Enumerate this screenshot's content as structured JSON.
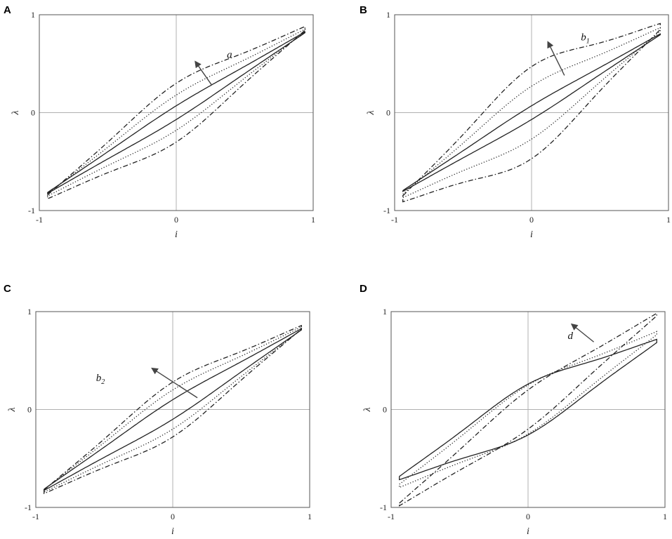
{
  "chart_data": [
    {
      "type": "line",
      "panel": "A",
      "xlabel": "i",
      "ylabel": "λ",
      "xlim": [
        -1,
        1
      ],
      "ylim": [
        -1,
        1
      ],
      "xticks": [
        "-1",
        "0",
        "1"
      ],
      "yticks": [
        "-1",
        "0",
        "1"
      ],
      "grid": "zero lines",
      "annotation": {
        "base": "a",
        "sub": "",
        "arrow_from": [
          0.26,
          0.28
        ],
        "arrow_to": [
          0.14,
          0.52
        ],
        "text_at": [
          0.37,
          0.56
        ]
      },
      "series": [
        {
          "style": "solid",
          "values": {
            "w": 0.07,
            "top": 0.82,
            "bottom": -0.79
          }
        },
        {
          "style": "dotted",
          "values": {
            "w": 0.18,
            "top": 0.84,
            "bottom": -0.82
          }
        },
        {
          "style": "dashdot",
          "values": {
            "w": 0.3,
            "top": 0.86,
            "bottom": -0.86
          }
        }
      ]
    },
    {
      "type": "line",
      "panel": "B",
      "xlabel": "i",
      "ylabel": "λ",
      "xlim": [
        -1,
        1
      ],
      "ylim": [
        -1,
        1
      ],
      "xticks": [
        "-1",
        "0",
        "1"
      ],
      "yticks": [
        "-1",
        "0",
        "1"
      ],
      "grid": "zero lines",
      "annotation": {
        "base": "b",
        "sub": "1",
        "arrow_from": [
          0.24,
          0.38
        ],
        "arrow_to": [
          0.12,
          0.72
        ],
        "text_at": [
          0.36,
          0.74
        ]
      },
      "series": [
        {
          "style": "solid",
          "values": {
            "w": 0.07,
            "top": 0.8,
            "bottom": -0.8
          }
        },
        {
          "style": "dotted",
          "values": {
            "w": 0.27,
            "top": 0.85,
            "bottom": -0.85
          }
        },
        {
          "style": "dashdot",
          "values": {
            "w": 0.47,
            "top": 0.88,
            "bottom": -0.88
          }
        }
      ]
    },
    {
      "type": "line",
      "panel": "C",
      "xlabel": "i",
      "ylabel": "λ",
      "xlim": [
        -1,
        1
      ],
      "ylim": [
        -1,
        1
      ],
      "xticks": [
        "-1",
        "0",
        "1"
      ],
      "yticks": [
        "-1",
        "0",
        "1"
      ],
      "grid": "zero lines",
      "annotation": {
        "base": "b",
        "sub": "2",
        "arrow_from": [
          0.18,
          0.12
        ],
        "arrow_to": [
          -0.15,
          0.42
        ],
        "text_at": [
          -0.56,
          0.29
        ]
      },
      "series": [
        {
          "style": "solid",
          "values": {
            "w": 0.1,
            "top": 0.82,
            "bottom": -0.81
          }
        },
        {
          "style": "dotted",
          "values": {
            "w": 0.2,
            "top": 0.83,
            "bottom": -0.82
          }
        },
        {
          "style": "dashdot",
          "values": {
            "w": 0.28,
            "top": 0.84,
            "bottom": -0.83
          }
        }
      ]
    },
    {
      "type": "line",
      "panel": "D",
      "xlabel": "i",
      "ylabel": "λ",
      "xlim": [
        -1,
        1
      ],
      "ylim": [
        -1,
        1
      ],
      "xticks": [
        "-1",
        "0",
        "1"
      ],
      "yticks": [
        "-1",
        "0",
        "1"
      ],
      "grid": "zero lines",
      "annotation": {
        "base": "d",
        "sub": "",
        "arrow_from": [
          0.48,
          0.69
        ],
        "arrow_to": [
          0.32,
          0.87
        ],
        "text_at": [
          0.29,
          0.72
        ]
      },
      "series": [
        {
          "style": "solid",
          "values": {
            "w": 0.26,
            "top": 0.7,
            "bottom": -0.7
          }
        },
        {
          "style": "dotted",
          "values": {
            "w": 0.25,
            "top": 0.78,
            "bottom": -0.78
          }
        },
        {
          "style": "dashdot",
          "values": {
            "w": 0.2,
            "top": 0.97,
            "bottom": -0.97
          }
        }
      ]
    }
  ]
}
